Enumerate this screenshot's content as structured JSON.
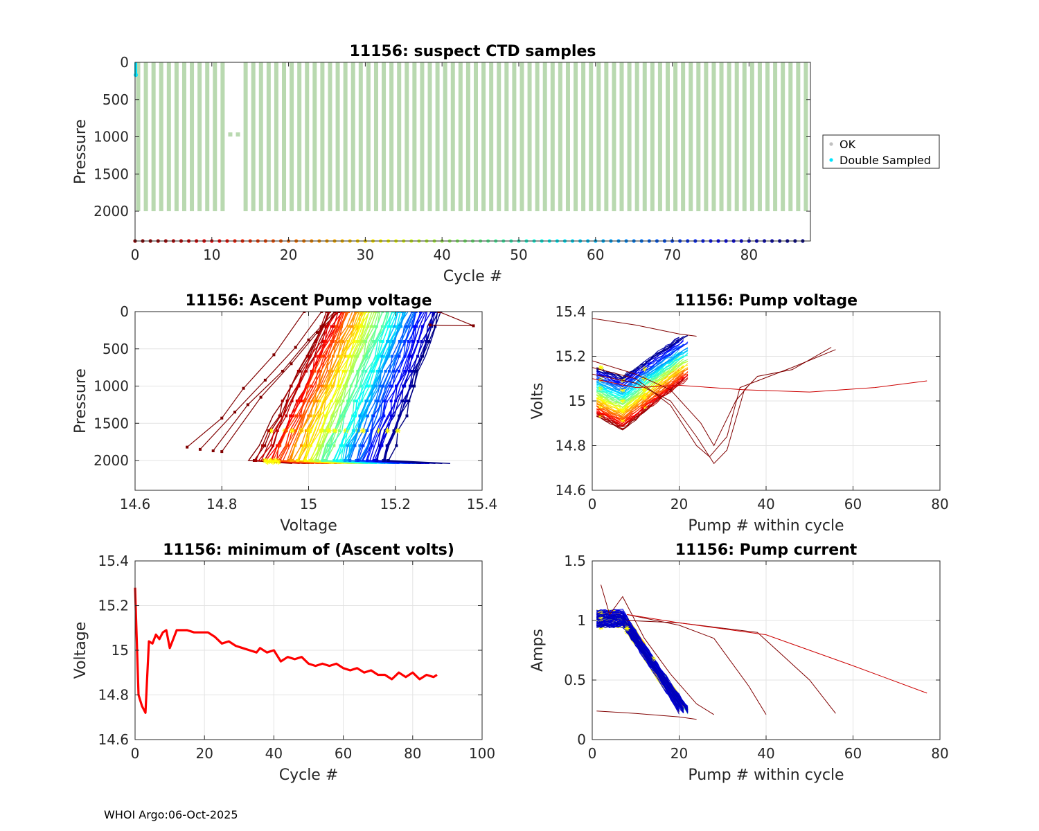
{
  "footer": "WHOI Argo:06-Oct-2025",
  "chart_data": [
    {
      "id": "suspect",
      "type": "scatter",
      "title": "11156: suspect CTD samples",
      "xlabel": "Cycle #",
      "ylabel": "Pressure",
      "xlim": [
        0,
        88
      ],
      "ylim": [
        0,
        2400
      ],
      "y_reversed": true,
      "xticks": [
        "0",
        "10",
        "20",
        "30",
        "40",
        "50",
        "60",
        "70",
        "80"
      ],
      "yticks": [
        "0",
        "500",
        "1000",
        "1500",
        "2000"
      ],
      "legend": [
        {
          "label": "OK",
          "color": "#c0c0c0"
        },
        {
          "label": "Double Sampled",
          "color": "#00e5ff"
        }
      ],
      "legend_position": "outside-right",
      "profile_color": "#b9d9b0",
      "profiles": {
        "first_cycle": 0,
        "last_cycle": 87,
        "top_pressure": 0,
        "bottom_pressure": 2000,
        "missing_cycles": [
          12,
          13
        ],
        "short_profiles": [
          {
            "cycle": 12,
            "bottom": 960
          },
          {
            "cycle": 13,
            "bottom": 960
          }
        ]
      },
      "double_sampled": [
        {
          "cycle": 0,
          "pressure": 170
        }
      ],
      "cycle_marker_pressure": 2400
    },
    {
      "id": "ascent",
      "type": "line",
      "title": "11156: Ascent Pump voltage",
      "xlabel": "Voltage",
      "ylabel": "Pressure",
      "xlim": [
        14.6,
        15.4
      ],
      "ylim": [
        0,
        2400
      ],
      "y_reversed": true,
      "xticks": [
        "14.6",
        "14.8",
        "15",
        "15.2",
        "15.4"
      ],
      "yticks": [
        "0",
        "500",
        "1000",
        "1500",
        "2000"
      ],
      "series": [
        {
          "name": "cycle 0",
          "color": "#800000",
          "points": [
            [
              15.3,
              0
            ],
            [
              15.38,
              190
            ],
            [
              15.28,
              180
            ]
          ]
        },
        {
          "name": "cycle 1",
          "color": "#800000",
          "points": [
            [
              14.72,
              1820
            ],
            [
              14.8,
              1430
            ],
            [
              14.85,
              1030
            ],
            [
              14.92,
              580
            ],
            [
              14.99,
              0
            ]
          ]
        },
        {
          "name": "cycle 2",
          "color": "#800000",
          "points": [
            [
              14.75,
              1850
            ],
            [
              14.83,
              1350
            ],
            [
              14.9,
              920
            ],
            [
              14.97,
              480
            ],
            [
              15.03,
              0
            ]
          ]
        },
        {
          "name": "cycle 3",
          "color": "#800000",
          "points": [
            [
              14.78,
              1870
            ],
            [
              14.86,
              1250
            ],
            [
              14.94,
              800
            ],
            [
              15.0,
              380
            ],
            [
              15.06,
              0
            ]
          ]
        },
        {
          "name": "cycle 4",
          "color": "#800000",
          "points": [
            [
              14.8,
              1880
            ],
            [
              14.89,
              1150
            ],
            [
              14.96,
              700
            ],
            [
              15.02,
              280
            ],
            [
              15.07,
              0
            ]
          ]
        }
      ],
      "band_range": {
        "volt_at_bottom": [
          14.88,
          15.18
        ],
        "volt_at_top": [
          15.04,
          15.3
        ]
      }
    },
    {
      "id": "pumpv",
      "type": "line",
      "title": "11156: Pump voltage",
      "xlabel": "Pump # within cycle",
      "ylabel": "Volts",
      "xlim": [
        0,
        80
      ],
      "ylim": [
        14.6,
        15.4
      ],
      "xticks": [
        "0",
        "20",
        "40",
        "60",
        "80"
      ],
      "yticks": [
        "14.6",
        "14.8",
        "15",
        "15.2",
        "15.4"
      ],
      "series": [
        {
          "name": "cycle 0",
          "color": "#800000",
          "points": [
            [
              0,
              15.37
            ],
            [
              10,
              15.34
            ],
            [
              20,
              15.3
            ],
            [
              24,
              15.29
            ]
          ]
        },
        {
          "name": "cycle 1",
          "color": "#800000",
          "points": [
            [
              0,
              15.12
            ],
            [
              10,
              15.08
            ],
            [
              18,
              15.0
            ],
            [
              24,
              14.84
            ],
            [
              28,
              14.72
            ],
            [
              31,
              14.78
            ],
            [
              35,
              15.05
            ],
            [
              38,
              15.11
            ],
            [
              46,
              15.14
            ],
            [
              55,
              15.24
            ]
          ]
        },
        {
          "name": "cycle 2",
          "color": "#800000",
          "points": [
            [
              0,
              15.15
            ],
            [
              10,
              15.1
            ],
            [
              18,
              14.98
            ],
            [
              24,
              14.8
            ],
            [
              27,
              14.75
            ],
            [
              31,
              14.84
            ],
            [
              34,
              15.06
            ],
            [
              38,
              15.09
            ],
            [
              46,
              15.15
            ],
            [
              56,
              15.23
            ]
          ]
        },
        {
          "name": "cycle 3",
          "color": "#800000",
          "points": [
            [
              0,
              15.18
            ],
            [
              10,
              15.12
            ],
            [
              18,
              15.05
            ],
            [
              25,
              14.9
            ],
            [
              28,
              14.8
            ],
            [
              33,
              15.0
            ],
            [
              36,
              15.07
            ]
          ]
        },
        {
          "name": "cycle 4",
          "color": "#cc0000",
          "points": [
            [
              0,
              15.1
            ],
            [
              10,
              15.06
            ],
            [
              20,
              15.07
            ],
            [
              35,
              15.05
            ],
            [
              50,
              15.04
            ],
            [
              65,
              15.06
            ],
            [
              77,
              15.09
            ]
          ]
        }
      ],
      "band_range": {
        "start": [
          14.93,
          15.15
        ],
        "min_at_pump": 7,
        "end_pump": [
          20,
          23
        ]
      }
    },
    {
      "id": "minv",
      "type": "line",
      "title": "11156: minimum of (Ascent volts)",
      "xlabel": "Cycle #",
      "ylabel": "Voltage",
      "xlim": [
        0,
        100
      ],
      "ylim": [
        14.6,
        15.4
      ],
      "xticks": [
        "0",
        "20",
        "40",
        "60",
        "80",
        "100"
      ],
      "yticks": [
        "14.6",
        "14.8",
        "15",
        "15.2",
        "15.4"
      ],
      "series": [
        {
          "name": "min ascent volts",
          "color": "#ff0000",
          "points": [
            [
              0,
              15.28
            ],
            [
              1,
              14.8
            ],
            [
              2,
              14.75
            ],
            [
              3,
              14.72
            ],
            [
              4,
              15.04
            ],
            [
              5,
              15.03
            ],
            [
              6,
              15.07
            ],
            [
              7,
              15.05
            ],
            [
              8,
              15.08
            ],
            [
              9,
              15.09
            ],
            [
              10,
              15.01
            ],
            [
              11,
              15.05
            ],
            [
              12,
              15.09
            ],
            [
              13,
              15.09
            ],
            [
              15,
              15.09
            ],
            [
              17,
              15.08
            ],
            [
              19,
              15.08
            ],
            [
              21,
              15.08
            ],
            [
              23,
              15.06
            ],
            [
              25,
              15.03
            ],
            [
              27,
              15.04
            ],
            [
              29,
              15.02
            ],
            [
              31,
              15.01
            ],
            [
              33,
              15.0
            ],
            [
              35,
              14.99
            ],
            [
              36,
              15.01
            ],
            [
              38,
              14.99
            ],
            [
              40,
              15.0
            ],
            [
              42,
              14.95
            ],
            [
              44,
              14.97
            ],
            [
              46,
              14.96
            ],
            [
              48,
              14.97
            ],
            [
              50,
              14.94
            ],
            [
              52,
              14.93
            ],
            [
              54,
              14.94
            ],
            [
              56,
              14.93
            ],
            [
              58,
              14.94
            ],
            [
              60,
              14.92
            ],
            [
              62,
              14.91
            ],
            [
              64,
              14.92
            ],
            [
              66,
              14.9
            ],
            [
              68,
              14.91
            ],
            [
              70,
              14.89
            ],
            [
              72,
              14.89
            ],
            [
              74,
              14.87
            ],
            [
              76,
              14.9
            ],
            [
              78,
              14.88
            ],
            [
              80,
              14.9
            ],
            [
              82,
              14.87
            ],
            [
              84,
              14.89
            ],
            [
              86,
              14.88
            ],
            [
              87,
              14.89
            ]
          ]
        }
      ]
    },
    {
      "id": "current",
      "type": "line",
      "title": "11156: Pump current",
      "xlabel": "Pump # within cycle",
      "ylabel": "Amps",
      "xlim": [
        0,
        80
      ],
      "ylim": [
        0,
        1.5
      ],
      "xticks": [
        "0",
        "20",
        "40",
        "60",
        "80"
      ],
      "yticks": [
        "0",
        "0.5",
        "1",
        "1.5"
      ],
      "series": [
        {
          "name": "cycle 0",
          "color": "#800000",
          "points": [
            [
              1,
              0.24
            ],
            [
              10,
              0.22
            ],
            [
              20,
              0.19
            ],
            [
              24,
              0.17
            ]
          ]
        },
        {
          "name": "cycle 1",
          "color": "#800000",
          "points": [
            [
              2,
              1.3
            ],
            [
              4,
              1.05
            ],
            [
              7,
              1.2
            ],
            [
              12,
              0.85
            ],
            [
              18,
              0.55
            ],
            [
              24,
              0.3
            ],
            [
              28,
              0.21
            ]
          ]
        },
        {
          "name": "cycle 2",
          "color": "#800000",
          "points": [
            [
              8,
              1.05
            ],
            [
              20,
              0.96
            ],
            [
              28,
              0.85
            ],
            [
              36,
              0.45
            ],
            [
              40,
              0.21
            ]
          ]
        },
        {
          "name": "cycle 3",
          "color": "#800000",
          "points": [
            [
              8,
              1.0
            ],
            [
              20,
              0.98
            ],
            [
              38,
              0.9
            ],
            [
              50,
              0.5
            ],
            [
              56,
              0.22
            ]
          ]
        },
        {
          "name": "cycle 4",
          "color": "#cc0000",
          "points": [
            [
              8,
              1.05
            ],
            [
              20,
              0.98
            ],
            [
              40,
              0.88
            ],
            [
              60,
              0.62
            ],
            [
              77,
              0.39
            ]
          ]
        }
      ],
      "band_range": {
        "start": [
          0.95,
          1.08
        ],
        "drop_from_pump": 7,
        "end_pump": [
          20,
          23
        ],
        "end_amps": 0.22
      }
    }
  ]
}
